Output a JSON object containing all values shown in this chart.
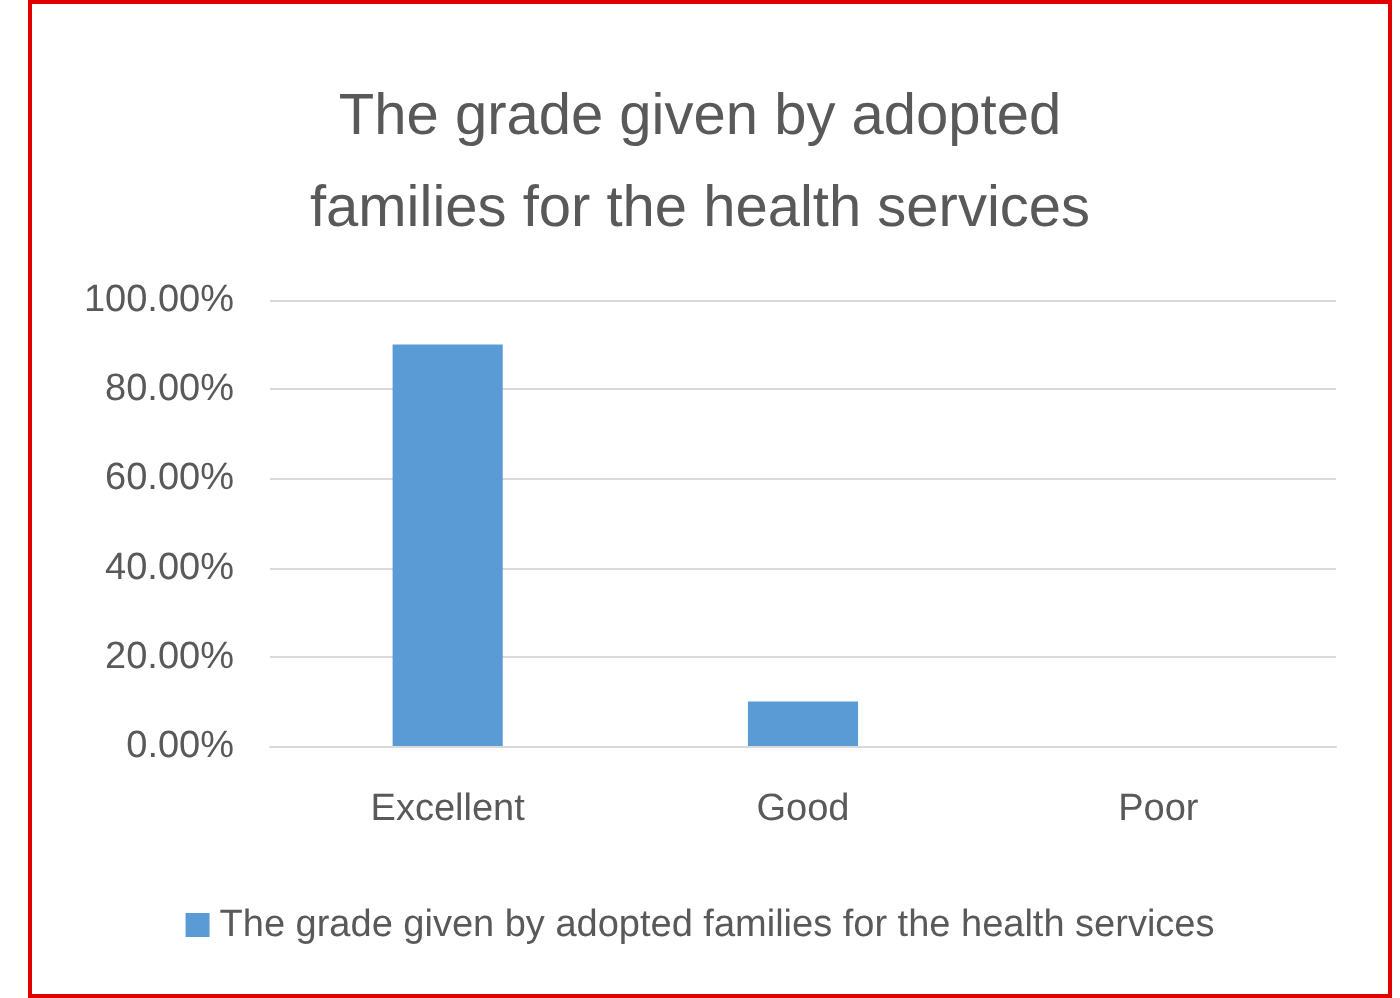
{
  "chart_data": {
    "type": "bar",
    "title": "The grade given by adopted\nfamilies for the health services",
    "categories": [
      "Excellent",
      "Good",
      "Poor"
    ],
    "series": [
      {
        "name": "The grade given by adopted families for the health services",
        "color": "#5b9bd5",
        "values": [
          90,
          10,
          0
        ]
      }
    ],
    "ylim": [
      0,
      100
    ],
    "yticks": [
      {
        "value": 0,
        "label": "0.00%"
      },
      {
        "value": 20,
        "label": "20.00%"
      },
      {
        "value": 40,
        "label": "40.00%"
      },
      {
        "value": 60,
        "label": "60.00%"
      },
      {
        "value": 80,
        "label": "80.00%"
      },
      {
        "value": 100,
        "label": "100.00%"
      }
    ],
    "grid": "y",
    "legend": "bottom"
  }
}
